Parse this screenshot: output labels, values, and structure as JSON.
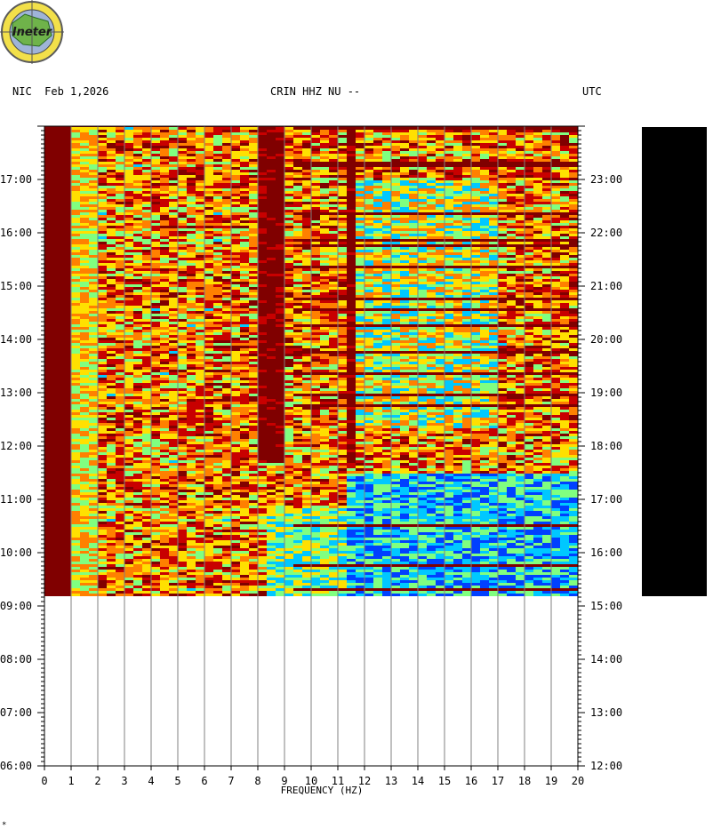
{
  "header": {
    "left": "NIC  Feb 1,2026",
    "center": "CRIN HHZ NU --",
    "right": "UTC"
  },
  "logo": {
    "text": "Ineter"
  },
  "corner_mark": "*",
  "colors": {
    "dark_red": "#800000",
    "red": "#c80000",
    "orange": "#ff8000",
    "yellow": "#ffe000",
    "light_green": "#80ff80",
    "cyan": "#00c8ff",
    "blue": "#0040ff",
    "sidebar": "#000000"
  },
  "chart_data": {
    "type": "heatmap",
    "title": "CRIN HHZ NU --",
    "xlabel": "FREQUENCY (HZ)",
    "xlim": [
      0,
      20
    ],
    "x_ticks": [
      "0",
      "1",
      "2",
      "3",
      "4",
      "5",
      "6",
      "7",
      "8",
      "9",
      "10",
      "11",
      "12",
      "13",
      "14",
      "15",
      "16",
      "17",
      "18",
      "19",
      "20"
    ],
    "left_axis_label": "NIC",
    "right_axis_label": "UTC",
    "left_ticks": [
      "17:00",
      "16:00",
      "15:00",
      "14:00",
      "13:00",
      "12:00",
      "11:00",
      "10:00",
      "09:00",
      "08:00",
      "07:00",
      "06:00"
    ],
    "right_ticks": [
      "23:00",
      "22:00",
      "21:00",
      "20:00",
      "19:00",
      "18:00",
      "17:00",
      "16:00",
      "15:00",
      "14:00",
      "13:00",
      "12:00"
    ],
    "time_range_local": [
      "06:00",
      "18:00"
    ],
    "data_end_local": "09:10",
    "grid": true,
    "date": "Feb 1,2026"
  }
}
